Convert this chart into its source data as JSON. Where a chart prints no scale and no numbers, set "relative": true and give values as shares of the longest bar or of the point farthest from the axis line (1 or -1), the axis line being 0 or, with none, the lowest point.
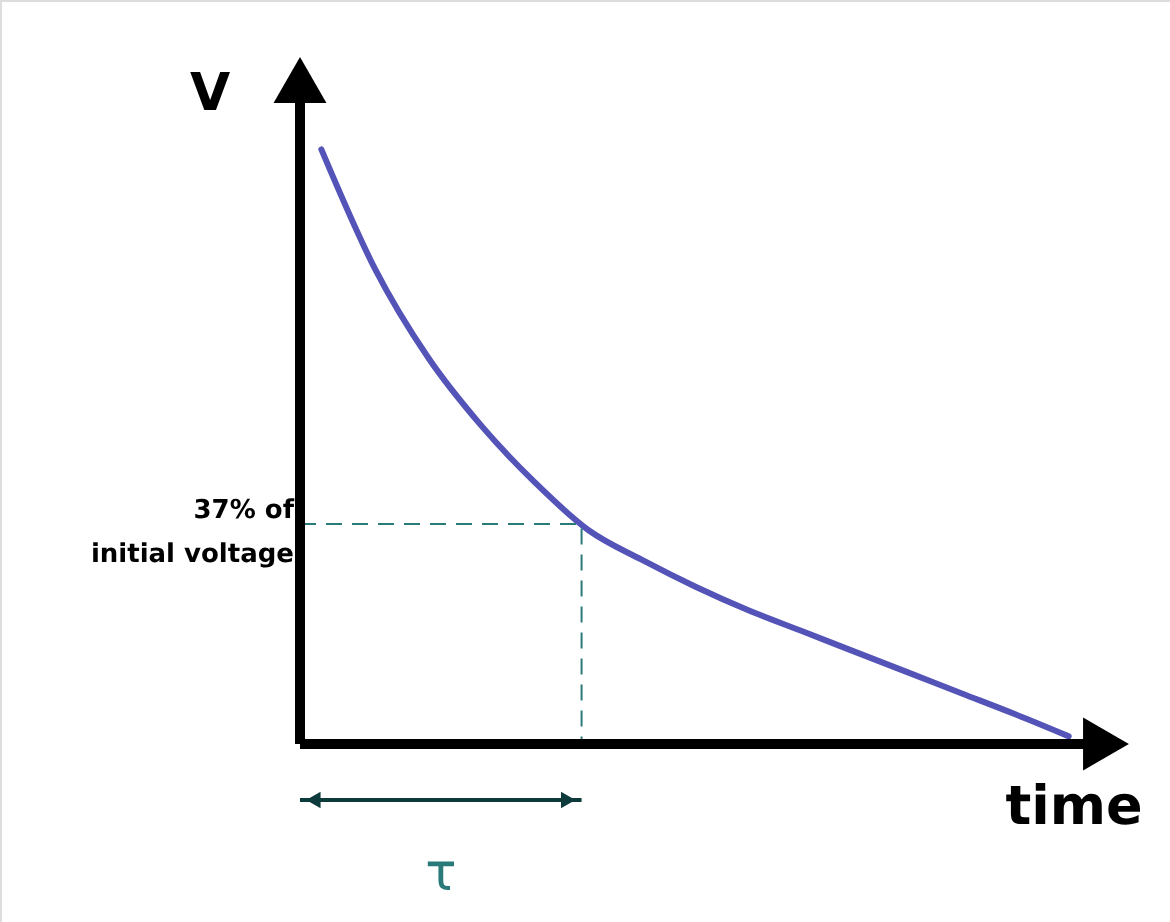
{
  "chart_data": {
    "type": "line",
    "relative": true,
    "xlabel": "time",
    "ylabel": "V",
    "categories": [
      null,
      null,
      null,
      null,
      null,
      null,
      null,
      null,
      null,
      null,
      null,
      null,
      null,
      null,
      null
    ],
    "values": [
      1.0,
      0.8,
      0.65,
      0.535,
      0.44,
      0.36,
      0.31,
      0.265,
      0.225,
      0.19,
      0.155,
      0.12,
      0.085,
      0.05,
      0.013
    ],
    "color": "#5454b8",
    "ref_lines": [
      {
        "axis": "y",
        "value": 0.37,
        "label": "37% of initial voltage",
        "line_style": "dashed",
        "color": "#2a7a7a"
      }
    ],
    "annotations": [
      "τ"
    ]
  }
}
